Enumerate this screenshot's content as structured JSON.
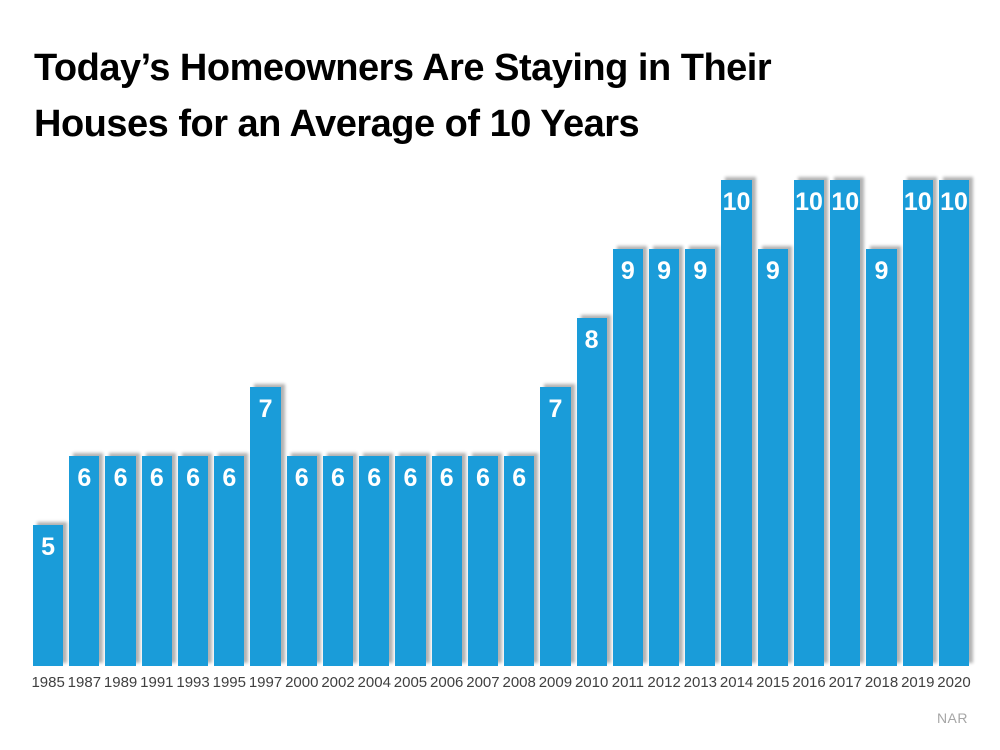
{
  "slide": {
    "title_line1": "Today’s Homeowners Are Staying in Their",
    "title_line2": "Houses for an Average of 10 Years",
    "attribution": "NAR"
  },
  "colors": {
    "bar": "#1A9CD9",
    "title": "#000000",
    "axis_label": "#404040",
    "value_label": "#FFFFFF",
    "attribution": "#A6A6A6"
  },
  "chart_data": {
    "type": "bar",
    "title": "Today’s Homeowners Are Staying in Their Houses for an Average of 10 Years",
    "categories": [
      "1985",
      "1987",
      "1989",
      "1991",
      "1993",
      "1995",
      "1997",
      "2000",
      "2002",
      "2004",
      "2005",
      "2006",
      "2007",
      "2008",
      "2009",
      "2010",
      "2011",
      "2012",
      "2013",
      "2014",
      "2015",
      "2016",
      "2017",
      "2018",
      "2019",
      "2020"
    ],
    "values": [
      5,
      6,
      6,
      6,
      6,
      6,
      7,
      6,
      6,
      6,
      6,
      6,
      6,
      6,
      7,
      8,
      9,
      9,
      9,
      10,
      9,
      10,
      10,
      9,
      10,
      10
    ],
    "xlabel": "",
    "ylabel": "",
    "ylim": [
      3,
      10
    ],
    "grid": false,
    "legend": false,
    "value_labels": true,
    "source_label": "NAR"
  }
}
